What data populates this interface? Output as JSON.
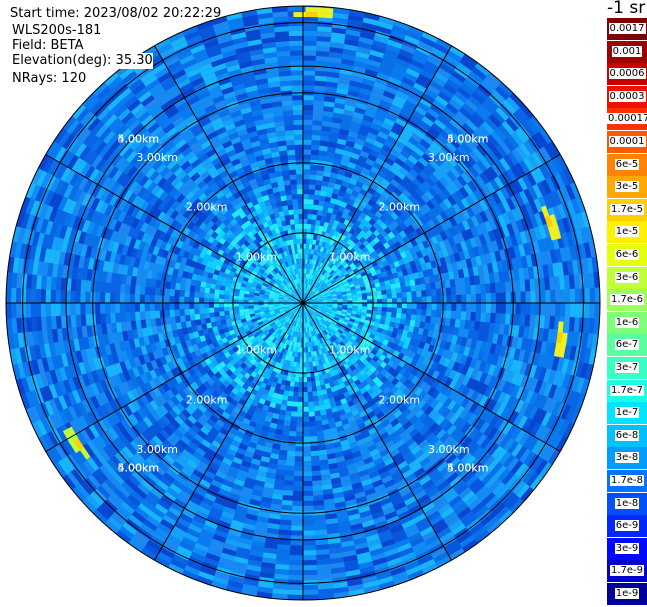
{
  "info": {
    "start_time": "Start time: 2023/08/02 20:22:29",
    "instrument": "WLS200s-181",
    "field": "Field: BETA",
    "elevation": "Elevation(deg): 35.30",
    "nrays": "NRays: 120"
  },
  "colorbar": {
    "unit": "-1 sr",
    "labels": [
      "0.0017",
      "0.001",
      "0.0006",
      "0.0003",
      "0.00017",
      "0.0001",
      "6e-5",
      "3e-5",
      "1.7e-5",
      "1e-5",
      "6e-6",
      "3e-6",
      "1.7e-6",
      "1e-6",
      "6e-7",
      "3e-7",
      "1.7e-7",
      "1e-7",
      "6e-8",
      "3e-8",
      "1.7e-8",
      "1e-8",
      "6e-9",
      "3e-9",
      "1.7e-9",
      "1e-9"
    ],
    "colors": [
      "#7f0000",
      "#a00000",
      "#c80000",
      "#ee1000",
      "#ff3000",
      "#ff5a00",
      "#ff8200",
      "#ffa800",
      "#ffd000",
      "#fff000",
      "#e4ff10",
      "#c0ff36",
      "#9cff5a",
      "#7cff7a",
      "#5affa0",
      "#3affc4",
      "#1affe4",
      "#00e4ff",
      "#00c0ff",
      "#009cff",
      "#0074ff",
      "#0050ff",
      "#0028ff",
      "#0008ff",
      "#0000d0",
      "#00009a"
    ]
  },
  "chart_data": {
    "type": "heatmap",
    "projection": "polar (PPI scan)",
    "field": "BETA",
    "rings_km": [
      1,
      2,
      3,
      4,
      5
    ],
    "ring_labels": [
      "1.00km",
      "2.00km",
      "3.00km",
      "4.00km",
      "5.00km"
    ],
    "radial_lines": 12,
    "max_range_km": 5.0,
    "scale": "log",
    "value_range": [
      1e-09,
      0.0017
    ],
    "background_level": "1e-8 to 3e-8",
    "near_center_level": "1e-7 to 3e-7",
    "hotspots": [
      {
        "azimuth_deg": 2,
        "range_km": 4.9,
        "level": "1e-5"
      },
      {
        "azimuth_deg": 72,
        "range_km": 4.4,
        "level": "1e-5"
      },
      {
        "azimuth_deg": 98,
        "range_km": 4.4,
        "level": "1e-5"
      },
      {
        "azimuth_deg": 238,
        "range_km": 4.5,
        "level": "3e-6"
      }
    ]
  }
}
